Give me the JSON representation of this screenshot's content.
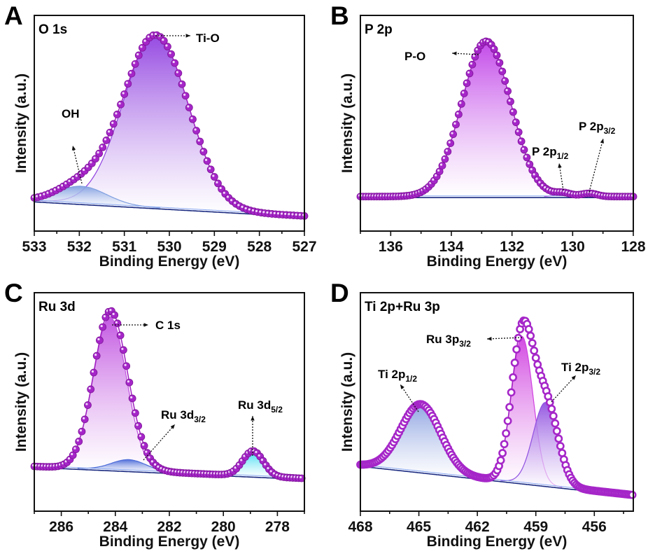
{
  "chart_data": [
    {
      "panel": "A",
      "title": "O 1s",
      "type": "line",
      "xlabel": "Binding Energy (eV)",
      "ylabel": "Intensity (a.u.)",
      "xlim": [
        533,
        527
      ],
      "ylim": [
        0,
        100
      ],
      "x_reversed": true,
      "xticks": [
        533,
        532,
        531,
        530,
        529,
        528,
        527
      ],
      "minor_step": 0.5,
      "baseline": [
        14,
        7
      ],
      "marker_style": "filled",
      "components": [
        {
          "name": "Ti-O",
          "center": 530.3,
          "fwhm": 1.7,
          "height": 80,
          "color": "#9040e0"
        },
        {
          "name": "OH",
          "center": 531.95,
          "fwhm": 1.3,
          "height": 8,
          "color": "#7f9fe0"
        }
      ],
      "annotations": [
        {
          "text": "Ti-O",
          "sub": ""
        },
        {
          "text": "OH",
          "sub": ""
        }
      ]
    },
    {
      "panel": "B",
      "title": "P 2p",
      "type": "line",
      "xlabel": "Binding Energy (eV)",
      "ylabel": "Intensity (a.u.)",
      "xlim": [
        137,
        128
      ],
      "ylim": [
        0,
        100
      ],
      "x_reversed": true,
      "xticks": [
        136,
        134,
        132,
        130,
        128
      ],
      "minor_step": 1,
      "baseline": [
        16,
        16
      ],
      "marker_style": "filled",
      "components": [
        {
          "name": "P-O",
          "center": 132.85,
          "fwhm": 1.9,
          "height": 72,
          "color": "#c040e8"
        },
        {
          "name": "P 2p1/2",
          "center": 130.3,
          "fwhm": 0.6,
          "height": 1.5,
          "color": "#c040e8"
        },
        {
          "name": "P 2p3/2",
          "center": 129.45,
          "fwhm": 0.6,
          "height": 1.5,
          "color": "#c040e8"
        }
      ],
      "annotations": [
        {
          "text": "P-O",
          "sub": ""
        },
        {
          "text": "P 2p",
          "sub": "1/2"
        },
        {
          "text": "P 2p",
          "sub": "3/2"
        }
      ]
    },
    {
      "panel": "C",
      "title": "Ru 3d",
      "type": "line",
      "xlabel": "Binding Energy (eV)",
      "ylabel": "Intensity (a.u.)",
      "xlim": [
        287,
        277
      ],
      "ylim": [
        0,
        100
      ],
      "x_reversed": true,
      "xticks": [
        286,
        284,
        282,
        280,
        278
      ],
      "minor_step": 1,
      "baseline": [
        20.5,
        15
      ],
      "marker_style": "filled",
      "components": [
        {
          "name": "C 1s",
          "center": 284.2,
          "fwhm": 1.45,
          "height": 70,
          "color": "#c050e0"
        },
        {
          "name": "Ru 3d3/2",
          "center": 283.5,
          "fwhm": 1.5,
          "height": 5,
          "color": "#4a6ad8"
        },
        {
          "name": "Ru 3d5/2",
          "center": 278.9,
          "fwhm": 0.9,
          "height": 11.5,
          "color": "#30d8f0"
        }
      ],
      "annotations": [
        {
          "text": "C 1s",
          "sub": ""
        },
        {
          "text": "Ru 3d",
          "sub": "3/2"
        },
        {
          "text": "Ru 3d",
          "sub": "5/2"
        }
      ]
    },
    {
      "panel": "D",
      "title": "Ti 2p+Ru 3p",
      "type": "line",
      "xlabel": "Binding Energy (eV)",
      "ylabel": "Intensity (a.u.)",
      "xlim": [
        468,
        454
      ],
      "ylim": [
        0,
        100
      ],
      "x_reversed": true,
      "xticks": [
        468,
        465,
        462,
        459,
        456
      ],
      "minor_step": 1.5,
      "baseline": [
        21,
        7.4
      ],
      "marker_style": "open",
      "components": [
        {
          "name": "Ti 2p1/2",
          "center": 464.9,
          "fwhm": 2.4,
          "height": 31,
          "color": "#8aa0e0"
        },
        {
          "name": "Ru 3p3/2",
          "center": 459.7,
          "fwhm": 1.3,
          "height": 67,
          "color": "#d040e0"
        },
        {
          "name": "Ti 2p3/2",
          "center": 458.5,
          "fwhm": 1.5,
          "height": 38,
          "color": "#9050e0"
        }
      ],
      "annotations": [
        {
          "text": "Ti 2p",
          "sub": "1/2"
        },
        {
          "text": "Ru 3p",
          "sub": "3/2"
        },
        {
          "text": "Ti 2p",
          "sub": "3/2"
        }
      ]
    }
  ],
  "colors": {
    "marker": "#a526c8",
    "marker_edge": "#7e1498",
    "envelope": "#a020c0",
    "baseline_dark": "#1a2a80",
    "baseline_light": "#8aa8f0"
  }
}
